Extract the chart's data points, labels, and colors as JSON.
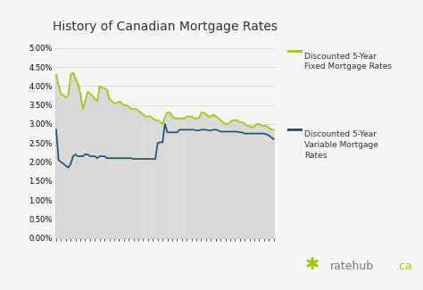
{
  "title": "History of Canadian Mortgage Rates",
  "title_fontsize": 10,
  "background_color": "#f5f5f5",
  "plot_bg_color": "#f5f5f5",
  "grid_color": "#cccccc",
  "ylim": [
    0.0,
    0.052
  ],
  "yticks": [
    0.0,
    0.005,
    0.01,
    0.015,
    0.02,
    0.025,
    0.03,
    0.035,
    0.04,
    0.045,
    0.05
  ],
  "ytick_labels": [
    "0.00%",
    "0.50%",
    "1.00%",
    "1.50%",
    "2.00%",
    "2.50%",
    "3.00%",
    "3.50%",
    "4.00%",
    "4.50%",
    "5.00%"
  ],
  "fixed_color": "#99cc00",
  "variable_color": "#1a4f72",
  "bar_fill_color": "#e8e8e8",
  "bar_line_color": "#aaaaaa",
  "legend_fixed_label": "Discounted 5-Year\nFixed Mortgage Rates",
  "legend_variable_label": "Discounted 5-Year\nVariable Mortgage\nRates",
  "fixed_rates": [
    0.043,
    0.04,
    0.038,
    0.0375,
    0.037,
    0.0375,
    0.043,
    0.0435,
    0.042,
    0.0405,
    0.038,
    0.034,
    0.036,
    0.0385,
    0.038,
    0.0375,
    0.0365,
    0.036,
    0.04,
    0.0395,
    0.0395,
    0.039,
    0.0365,
    0.036,
    0.0355,
    0.0355,
    0.036,
    0.0355,
    0.035,
    0.035,
    0.0345,
    0.034,
    0.034,
    0.034,
    0.0335,
    0.033,
    0.0325,
    0.032,
    0.032,
    0.032,
    0.0315,
    0.031,
    0.031,
    0.0305,
    0.03,
    0.032,
    0.033,
    0.033,
    0.032,
    0.0315,
    0.0315,
    0.0315,
    0.0315,
    0.0315,
    0.032,
    0.032,
    0.032,
    0.0315,
    0.0315,
    0.0315,
    0.033,
    0.033,
    0.0325,
    0.032,
    0.032,
    0.0325,
    0.032,
    0.0315,
    0.031,
    0.0305,
    0.03,
    0.03,
    0.0305,
    0.031,
    0.031,
    0.031,
    0.0305,
    0.0305,
    0.03,
    0.0295,
    0.0295,
    0.029,
    0.0295,
    0.03,
    0.03,
    0.0295,
    0.0295,
    0.0295,
    0.029,
    0.0285,
    0.0285
  ],
  "variable_rates": [
    0.0285,
    0.0205,
    0.02,
    0.0195,
    0.019,
    0.0185,
    0.0195,
    0.0215,
    0.022,
    0.0215,
    0.0215,
    0.0215,
    0.022,
    0.022,
    0.0215,
    0.0215,
    0.0215,
    0.021,
    0.0215,
    0.0215,
    0.0215,
    0.021,
    0.021,
    0.021,
    0.021,
    0.021,
    0.021,
    0.021,
    0.021,
    0.021,
    0.021,
    0.021,
    0.0208,
    0.0208,
    0.0208,
    0.0208,
    0.0208,
    0.0208,
    0.0208,
    0.0208,
    0.0208,
    0.0208,
    0.025,
    0.0252,
    0.0252,
    0.03,
    0.0278,
    0.0278,
    0.0278,
    0.0278,
    0.0278,
    0.0285,
    0.0285,
    0.0285,
    0.0285,
    0.0285,
    0.0285,
    0.0285,
    0.0283,
    0.0283,
    0.0285,
    0.0285,
    0.0285,
    0.0283,
    0.0283,
    0.0285,
    0.0285,
    0.0283,
    0.028,
    0.028,
    0.028,
    0.028,
    0.028,
    0.028,
    0.028,
    0.028,
    0.0278,
    0.0278,
    0.0275,
    0.0275,
    0.0275,
    0.0275,
    0.0275,
    0.0275,
    0.0275,
    0.0275,
    0.0275,
    0.0273,
    0.027,
    0.0265,
    0.026
  ]
}
